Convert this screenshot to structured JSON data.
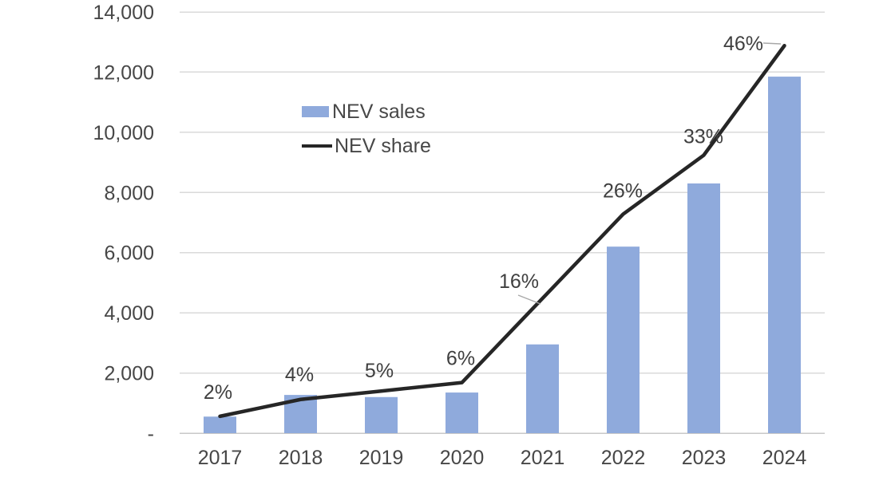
{
  "chart_data": {
    "type": "bar",
    "subtype": "combo-bar-line",
    "title": "",
    "categories": [
      "2017",
      "2018",
      "2019",
      "2020",
      "2021",
      "2022",
      "2023",
      "2024"
    ],
    "series": [
      {
        "name": "NEV sales",
        "type": "bar",
        "axis": "primary",
        "color": "#8FAADC",
        "values": [
          550,
          1270,
          1200,
          1350,
          2950,
          6200,
          8300,
          11850
        ]
      },
      {
        "name": "NEV share",
        "type": "line",
        "axis": "secondary",
        "color": "#262626",
        "values": [
          2,
          4,
          5,
          6,
          16,
          26,
          33,
          46
        ],
        "point_labels": [
          "2%",
          "4%",
          "5%",
          "6%",
          "16%",
          "26%",
          "33%",
          "46%"
        ]
      }
    ],
    "y_axis": {
      "min": 0,
      "max": 14000,
      "tick_interval": 2000,
      "tick_labels_bottom_to_top": [
        "-",
        "2,000",
        "4,000",
        "6,000",
        "8,000",
        "10,000",
        "12,000",
        "14,000"
      ]
    },
    "secondary_y_axis": {
      "min": 0,
      "max": 50,
      "visible": false
    },
    "grid": true,
    "legend_position": "inside-upper-left",
    "colors": {
      "bar_fill": "#8FAADC",
      "line_stroke": "#262626",
      "gridline": "#DADADA",
      "axis_line": "#C8C8C8",
      "label_text": "#474747",
      "leader_line": "#A8A8A8"
    }
  }
}
